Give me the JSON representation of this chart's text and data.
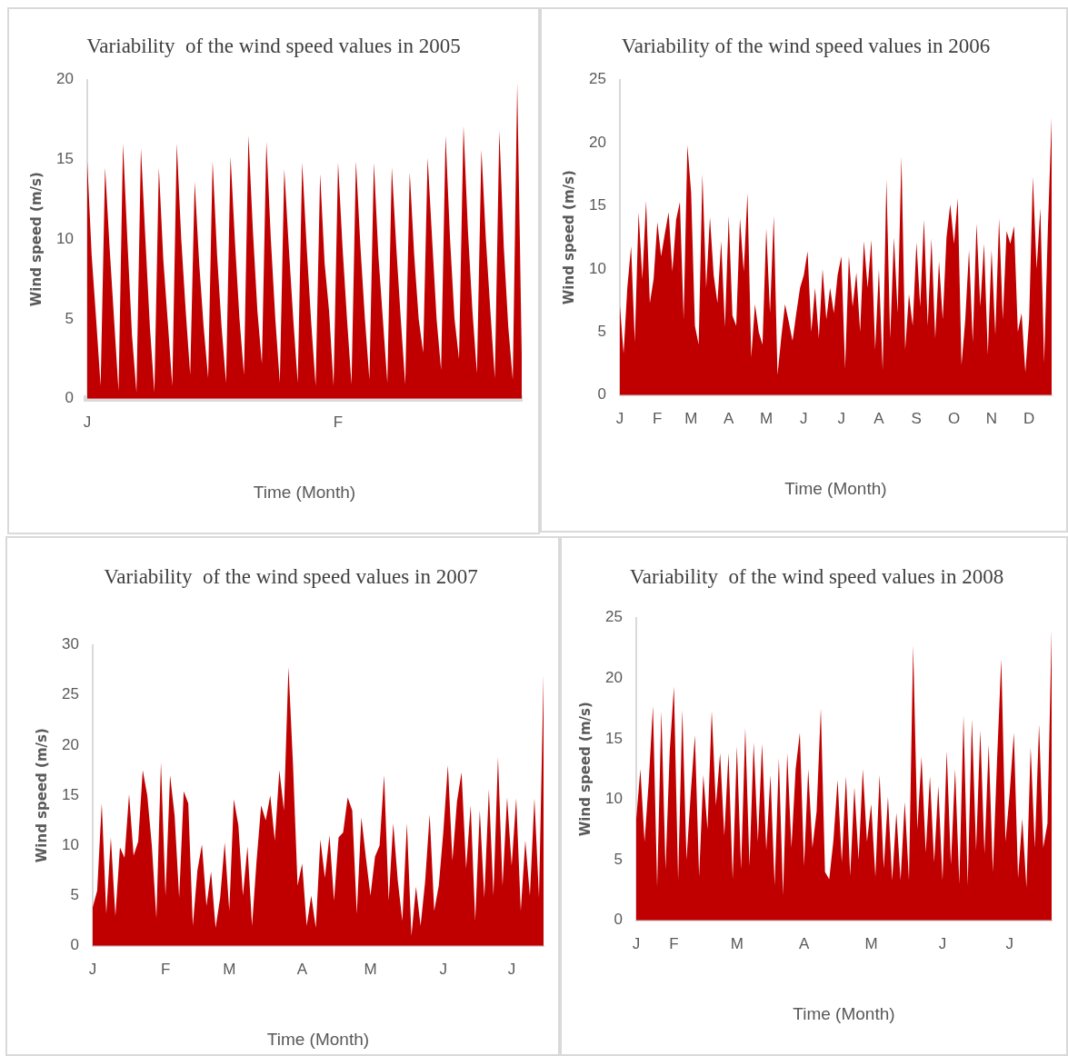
{
  "chart_data": [
    {
      "type": "area",
      "title": "Variability  of the wind speed values in 2005",
      "xlabel": "Time (Month)",
      "ylabel": "Wind speed (m/s)",
      "color": "#c00000",
      "ylim": [
        0,
        20
      ],
      "yticks": [
        0,
        5,
        10,
        15,
        20
      ],
      "categories": [
        "J",
        null,
        null,
        null,
        null,
        null,
        null,
        null,
        null,
        null,
        null,
        null,
        null,
        null,
        null,
        null,
        null,
        null,
        null,
        null,
        null,
        null,
        null,
        null,
        null,
        null,
        null,
        null,
        null,
        null,
        null,
        null,
        null,
        null,
        null,
        null,
        null,
        null,
        null,
        null,
        null,
        null,
        null,
        null,
        null,
        null,
        null,
        null,
        null,
        null,
        null,
        null,
        null,
        null,
        null,
        null,
        "F",
        null,
        null,
        null,
        null,
        null,
        null,
        null,
        null,
        null,
        null,
        null,
        null,
        null,
        null,
        null,
        null,
        null,
        null,
        null,
        null,
        null,
        null,
        null,
        null,
        null,
        null,
        null,
        null,
        null,
        null,
        null,
        null,
        null,
        null,
        null,
        null,
        null,
        null,
        null,
        null,
        null
      ],
      "values": [
        15.0,
        9.0,
        5.0,
        0.8,
        14.5,
        9.5,
        5.0,
        0.5,
        16.0,
        9.8,
        4.0,
        0.4,
        15.7,
        10.0,
        4.5,
        0.4,
        14.5,
        8.7,
        4.8,
        0.8,
        16.0,
        10.0,
        5.5,
        1.5,
        13.6,
        8.5,
        4.5,
        1.3,
        14.9,
        9.0,
        4.5,
        1.0,
        15.2,
        9.8,
        5.0,
        1.5,
        16.5,
        10.5,
        5.5,
        2.2,
        16.1,
        10.0,
        5.0,
        1.0,
        14.4,
        9.5,
        5.0,
        1.0,
        14.8,
        9.5,
        4.8,
        0.8,
        14.1,
        8.5,
        5.5,
        0.8,
        14.8,
        9.5,
        5.0,
        0.9,
        14.9,
        9.5,
        5.0,
        1.2,
        14.8,
        9.0,
        5.0,
        1.0,
        14.5,
        9.5,
        5.0,
        0.9,
        14.2,
        9.0,
        5.0,
        2.9,
        15.1,
        10.0,
        5.0,
        1.8,
        16.5,
        10.0,
        5.0,
        2.5,
        17.1,
        10.5,
        5.5,
        1.6,
        15.6,
        10.0,
        5.5,
        1.3,
        16.8,
        9.5,
        4.5,
        1.2,
        19.8,
        2.8
      ]
    },
    {
      "type": "area",
      "title": "Variability of the wind speed values in 2006",
      "xlabel": "Time (Month)",
      "ylabel": "Wind speed (m/s)",
      "color": "#c00000",
      "ylim": [
        0,
        25
      ],
      "yticks": [
        0,
        5,
        10,
        15,
        20,
        25
      ],
      "categories": [
        "J",
        null,
        null,
        null,
        null,
        null,
        null,
        null,
        null,
        null,
        "F",
        null,
        null,
        null,
        null,
        null,
        null,
        null,
        null,
        "M",
        null,
        null,
        null,
        null,
        null,
        null,
        null,
        null,
        null,
        "A",
        null,
        null,
        null,
        null,
        null,
        null,
        null,
        null,
        null,
        "M",
        null,
        null,
        null,
        null,
        null,
        null,
        null,
        null,
        null,
        "J",
        null,
        null,
        null,
        null,
        null,
        null,
        null,
        null,
        null,
        "J",
        null,
        null,
        null,
        null,
        null,
        null,
        null,
        null,
        null,
        "A",
        null,
        null,
        null,
        null,
        null,
        null,
        null,
        null,
        null,
        "S",
        null,
        null,
        null,
        null,
        null,
        null,
        null,
        null,
        null,
        "O",
        null,
        null,
        null,
        null,
        null,
        null,
        null,
        null,
        null,
        "N",
        null,
        null,
        null,
        null,
        null,
        null,
        null,
        null,
        null,
        "D",
        null,
        null,
        null,
        null,
        null,
        null
      ],
      "values": [
        7.2,
        3.3,
        8.5,
        11.8,
        4.2,
        14.5,
        9.2,
        15.4,
        7.3,
        9.2,
        13.7,
        11.0,
        12.8,
        14.5,
        9.8,
        13.9,
        15.3,
        6.0,
        19.8,
        16.0,
        5.5,
        4.0,
        17.5,
        8.5,
        14.1,
        9.5,
        7.3,
        12.2,
        5.4,
        14.2,
        6.3,
        5.5,
        14.0,
        9.8,
        16.0,
        3.0,
        7.2,
        5.0,
        4.0,
        13.2,
        6.5,
        14.2,
        1.6,
        4.6,
        7.2,
        5.8,
        4.3,
        6.5,
        8.5,
        9.5,
        11.4,
        5.0,
        8.5,
        4.5,
        10.0,
        6.0,
        8.5,
        6.5,
        9.5,
        11.0,
        2.1,
        11.0,
        7.0,
        9.7,
        5.0,
        12.2,
        8.5,
        12.3,
        3.6,
        10.0,
        2.0,
        17.1,
        4.5,
        12.5,
        6.5,
        18.9,
        3.6,
        8.0,
        5.5,
        12.1,
        7.0,
        13.9,
        5.5,
        12.4,
        4.5,
        10.6,
        6.0,
        12.5,
        15.1,
        12.0,
        15.6,
        2.4,
        6.0,
        11.5,
        4.2,
        13.6,
        7.0,
        12.0,
        3.2,
        11.5,
        4.8,
        14.0,
        6.0,
        13.0,
        12.0,
        13.4,
        5.0,
        6.5,
        1.8,
        6.0,
        17.3,
        10.0,
        14.8,
        2.6,
        13.2,
        22.0
      ]
    },
    {
      "type": "area",
      "title": "Variability  of the wind speed values in 2007",
      "xlabel": "Time (Month)",
      "ylabel": "Wind speed (m/s)",
      "color": "#c00000",
      "ylim": [
        0,
        30
      ],
      "yticks": [
        0,
        5,
        10,
        15,
        20,
        25,
        30
      ],
      "categories": [
        "J",
        null,
        null,
        null,
        null,
        null,
        null,
        null,
        null,
        null,
        null,
        null,
        null,
        null,
        null,
        null,
        "F",
        null,
        null,
        null,
        null,
        null,
        null,
        null,
        null,
        null,
        null,
        null,
        null,
        null,
        "M",
        null,
        null,
        null,
        null,
        null,
        null,
        null,
        null,
        null,
        null,
        null,
        null,
        null,
        null,
        null,
        "A",
        null,
        null,
        null,
        null,
        null,
        null,
        null,
        null,
        null,
        null,
        null,
        null,
        null,
        null,
        "M",
        null,
        null,
        null,
        null,
        null,
        null,
        null,
        null,
        null,
        null,
        null,
        null,
        null,
        null,
        null,
        "J",
        null,
        null,
        null,
        null,
        null,
        null,
        null,
        null,
        null,
        null,
        null,
        null,
        null,
        null,
        "J",
        null,
        null,
        null,
        null,
        null,
        null,
        null
      ],
      "values": [
        3.8,
        5.5,
        14.2,
        3.2,
        10.8,
        3.0,
        9.8,
        8.8,
        15.1,
        9.0,
        10.4,
        17.5,
        15.0,
        10.0,
        2.8,
        18.3,
        5.0,
        17.0,
        13.0,
        4.8,
        15.4,
        14.2,
        2.0,
        7.5,
        10.1,
        4.0,
        7.4,
        1.8,
        4.8,
        10.3,
        3.5,
        14.6,
        12.0,
        5.0,
        9.9,
        2.0,
        8.5,
        14.0,
        12.5,
        15.0,
        10.5,
        17.5,
        13.5,
        27.8,
        18.0,
        6.0,
        8.2,
        2.0,
        5.0,
        1.8,
        10.6,
        6.8,
        11.0,
        4.5,
        10.8,
        11.3,
        14.8,
        13.5,
        3.2,
        12.8,
        8.8,
        5.0,
        8.9,
        10.0,
        17.0,
        4.5,
        12.2,
        6.5,
        2.5,
        12.2,
        1.0,
        5.9,
        2.0,
        6.4,
        13.1,
        3.5,
        6.0,
        11.4,
        18.0,
        8.5,
        14.4,
        17.3,
        7.7,
        14.0,
        2.5,
        13.5,
        4.8,
        15.6,
        5.0,
        18.8,
        6.0,
        14.8,
        8.0,
        14.7,
        3.5,
        10.5,
        5.0,
        14.7,
        4.8,
        27.0
      ]
    },
    {
      "type": "area",
      "title": "Variability  of the wind speed values in 2008",
      "xlabel": "Time (Month)",
      "ylabel": "Wind speed (m/s)",
      "color": "#c00000",
      "ylim": [
        0,
        25
      ],
      "yticks": [
        0,
        5,
        10,
        15,
        20,
        25
      ],
      "categories": [
        "J",
        null,
        null,
        null,
        null,
        null,
        null,
        null,
        null,
        "F",
        null,
        null,
        null,
        null,
        null,
        null,
        null,
        null,
        null,
        null,
        null,
        null,
        null,
        null,
        "M",
        null,
        null,
        null,
        null,
        null,
        null,
        null,
        null,
        null,
        null,
        null,
        null,
        null,
        null,
        null,
        "A",
        null,
        null,
        null,
        null,
        null,
        null,
        null,
        null,
        null,
        null,
        null,
        null,
        null,
        null,
        null,
        "M",
        null,
        null,
        null,
        null,
        null,
        null,
        null,
        null,
        null,
        null,
        null,
        null,
        null,
        null,
        null,
        null,
        "J",
        null,
        null,
        null,
        null,
        null,
        null,
        null,
        null,
        null,
        null,
        null,
        null,
        null,
        null,
        null,
        "J",
        null,
        null,
        null,
        null,
        null,
        null,
        null,
        null,
        null,
        null
      ],
      "values": [
        8.3,
        12.5,
        6.5,
        11.5,
        17.7,
        2.8,
        17.3,
        4.2,
        14.0,
        19.3,
        3.3,
        17.4,
        5.0,
        10.5,
        15.3,
        3.6,
        12.0,
        7.5,
        17.3,
        9.5,
        13.8,
        7.0,
        13.8,
        3.4,
        14.4,
        4.2,
        15.9,
        4.5,
        14.7,
        6.5,
        14.6,
        5.8,
        12.0,
        2.9,
        13.4,
        2.1,
        13.8,
        6.0,
        12.5,
        15.5,
        4.5,
        12.5,
        6.0,
        9.0,
        17.5,
        4.0,
        3.4,
        6.6,
        11.6,
        4.8,
        11.9,
        3.7,
        11.0,
        5.0,
        12.5,
        6.5,
        9.6,
        3.6,
        12.0,
        4.3,
        10.2,
        3.3,
        8.9,
        3.3,
        9.8,
        3.3,
        22.7,
        7.5,
        13.5,
        5.6,
        11.9,
        4.8,
        11.1,
        3.3,
        14.0,
        4.6,
        12.5,
        3.0,
        16.9,
        2.9,
        16.6,
        5.8,
        15.7,
        5.5,
        14.5,
        4.0,
        13.3,
        21.6,
        6.5,
        10.5,
        15.5,
        3.5,
        8.4,
        2.7,
        14.3,
        6.0,
        16.2,
        6.0,
        8.0,
        24.0
      ]
    }
  ]
}
